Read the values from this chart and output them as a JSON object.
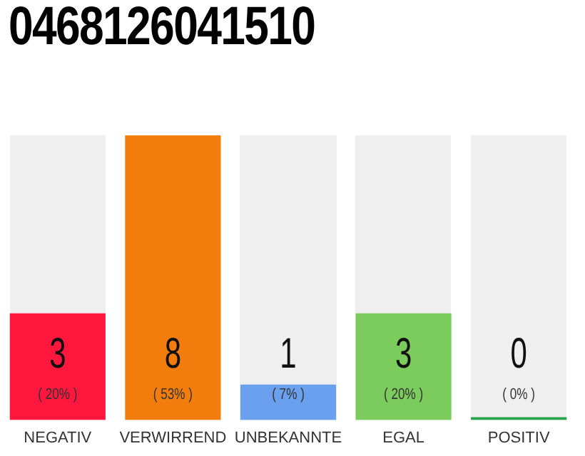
{
  "chart_data": {
    "type": "bar",
    "title": "0468126041510",
    "categories": [
      "NEGATIV",
      "VERWIRREND",
      "UNBEKANNTE",
      "EGAL",
      "POSITIV"
    ],
    "values": [
      3,
      8,
      1,
      3,
      0
    ],
    "colors": [
      "#ff173d",
      "#f27d0c",
      "#6aa0ee",
      "#7ccb5d",
      "#27a34a"
    ],
    "data_labels": true,
    "annotations": [
      "( 20% )",
      "( 53% )",
      "( 7% )",
      "( 20% )",
      "( 0% )"
    ],
    "grid": false,
    "legend": false
  }
}
